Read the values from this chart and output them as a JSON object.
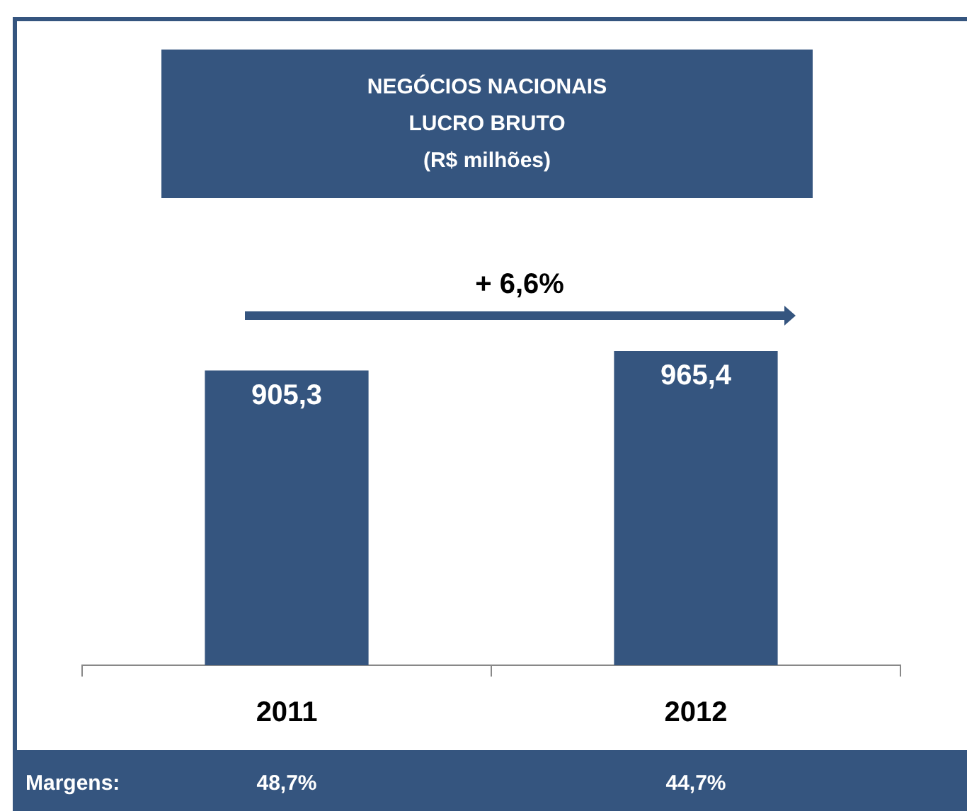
{
  "chart_data": {
    "type": "bar",
    "title": "NEGÓCIOS NACIONAIS\nLUCRO BRUTO\n(R$ milhões)",
    "categories": [
      "2011",
      "2012"
    ],
    "values": [
      905.3,
      965.4
    ],
    "color": "#35557f",
    "value_labels": [
      "905,3",
      "965,4"
    ],
    "tick_labels": "x",
    "legend": false,
    "annotations": [
      "+ 6,6%",
      "Margens:",
      "48,7%",
      "44,7%"
    ]
  }
}
